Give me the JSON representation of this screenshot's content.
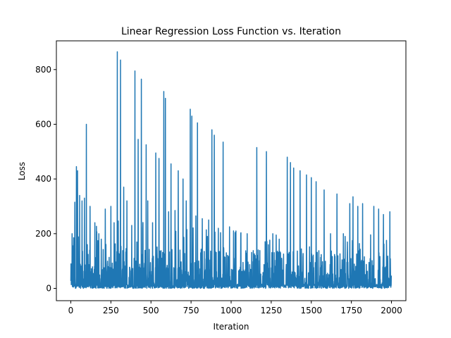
{
  "chart_data": {
    "type": "line",
    "title": "Linear Regression Loss Function vs. Iteration",
    "xlabel": "Iteration",
    "ylabel": "Loss",
    "xlim": [
      -90,
      2090
    ],
    "ylim": [
      -45,
      905
    ],
    "xticks": [
      0,
      250,
      500,
      750,
      1000,
      1250,
      1500,
      1750,
      2000
    ],
    "xtick_labels": [
      "0",
      "250",
      "500",
      "750",
      "1000",
      "1250",
      "1500",
      "1750",
      "2000"
    ],
    "yticks": [
      0,
      200,
      400,
      600,
      800
    ],
    "ytick_labels": [
      "0",
      "200",
      "400",
      "600",
      "800"
    ],
    "grid": false,
    "series": [
      {
        "name": "loss",
        "color": "#1f77b4",
        "n_points": 2000,
        "peaks": [
          [
            8,
            200
          ],
          [
            25,
            315
          ],
          [
            35,
            445
          ],
          [
            42,
            430
          ],
          [
            55,
            340
          ],
          [
            70,
            320
          ],
          [
            85,
            330
          ],
          [
            97,
            600
          ],
          [
            120,
            300
          ],
          [
            150,
            240
          ],
          [
            175,
            200
          ],
          [
            190,
            180
          ],
          [
            215,
            290
          ],
          [
            250,
            300
          ],
          [
            270,
            240
          ],
          [
            290,
            865
          ],
          [
            310,
            835
          ],
          [
            330,
            370
          ],
          [
            350,
            320
          ],
          [
            380,
            230
          ],
          [
            400,
            795
          ],
          [
            420,
            545
          ],
          [
            440,
            765
          ],
          [
            470,
            525
          ],
          [
            480,
            320
          ],
          [
            510,
            240
          ],
          [
            530,
            495
          ],
          [
            550,
            475
          ],
          [
            580,
            720
          ],
          [
            590,
            695
          ],
          [
            610,
            280
          ],
          [
            625,
            455
          ],
          [
            650,
            285
          ],
          [
            670,
            430
          ],
          [
            700,
            400
          ],
          [
            720,
            320
          ],
          [
            745,
            655
          ],
          [
            755,
            630
          ],
          [
            780,
            265
          ],
          [
            790,
            605
          ],
          [
            820,
            255
          ],
          [
            860,
            250
          ],
          [
            880,
            580
          ],
          [
            895,
            560
          ],
          [
            920,
            220
          ],
          [
            950,
            535
          ],
          [
            990,
            225
          ],
          [
            1030,
            210
          ],
          [
            1060,
            200
          ],
          [
            1100,
            200
          ],
          [
            1160,
            515
          ],
          [
            1220,
            500
          ],
          [
            1260,
            200
          ],
          [
            1300,
            180
          ],
          [
            1350,
            480
          ],
          [
            1370,
            460
          ],
          [
            1390,
            440
          ],
          [
            1430,
            430
          ],
          [
            1470,
            415
          ],
          [
            1500,
            405
          ],
          [
            1530,
            390
          ],
          [
            1580,
            360
          ],
          [
            1620,
            200
          ],
          [
            1660,
            345
          ],
          [
            1700,
            200
          ],
          [
            1740,
            310
          ],
          [
            1760,
            335
          ],
          [
            1790,
            300
          ],
          [
            1820,
            310
          ],
          [
            1860,
            95
          ],
          [
            1890,
            300
          ],
          [
            1920,
            290
          ],
          [
            1950,
            270
          ],
          [
            1990,
            280
          ]
        ]
      }
    ]
  }
}
